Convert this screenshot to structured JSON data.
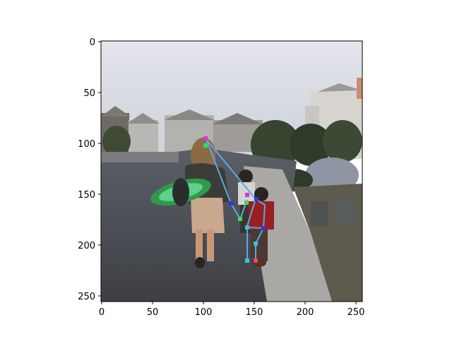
{
  "image": {
    "x_ticks": [
      "0",
      "50",
      "100",
      "150",
      "200",
      "250"
    ],
    "y_ticks": [
      "0",
      "50",
      "100",
      "150",
      "200",
      "250"
    ],
    "scene": "photo of a woman carrying a green skateboard walking down a street with two children; keypoint skeleton overlay on the older child",
    "overlay_colors": {
      "skeleton_line": "#5ba7e8",
      "keypoint_green": "#33dd55",
      "keypoint_magenta": "#d23cc8",
      "keypoint_blue": "#2f3ad8",
      "keypoint_cyan": "#39c3d8",
      "keypoint_pink": "#f04070"
    }
  }
}
